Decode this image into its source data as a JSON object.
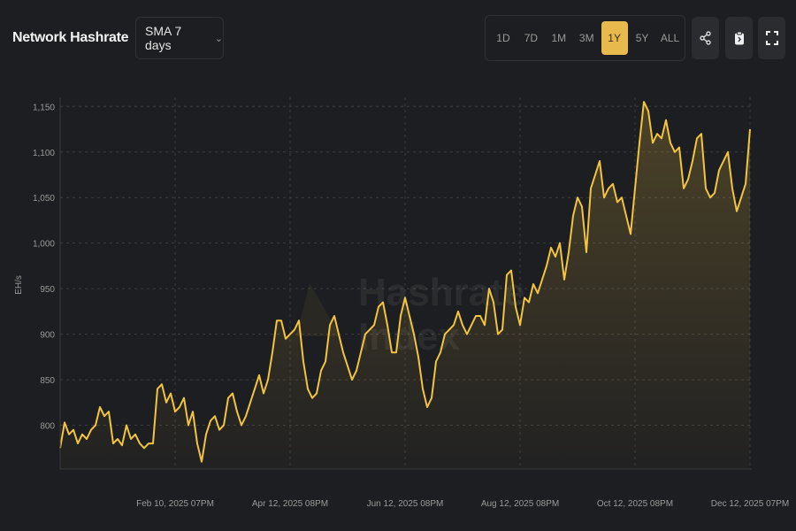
{
  "header": {
    "title": "Network Hashrate",
    "sma_select": "SMA 7 days",
    "ranges": [
      "1D",
      "7D",
      "1M",
      "3M",
      "1Y",
      "5Y",
      "ALL"
    ],
    "active_range": "1Y",
    "icons": [
      "share-icon",
      "clipboard-icon",
      "fullscreen-icon"
    ]
  },
  "watermark": "Hashrate Index",
  "colors": {
    "line": "#f2c440",
    "accent": "#e8ba4d",
    "background": "#1d1e21"
  },
  "chart_data": {
    "type": "area",
    "title": "Network Hashrate",
    "ylabel": "EH/s",
    "xlabel": "",
    "ylim": [
      750,
      1160
    ],
    "yticks": [
      800,
      850,
      900,
      950,
      1000,
      1050,
      1100,
      1150
    ],
    "ytick_labels": [
      "800",
      "850",
      "900",
      "950",
      "1,000",
      "1,050",
      "1,100",
      "1,150"
    ],
    "xtick_labels": [
      "Feb 10, 2025 07PM",
      "Apr 12, 2025 08PM",
      "Jun 12, 2025 08PM",
      "Aug 12, 2025 08PM",
      "Oct 12, 2025 08PM",
      "Dec 12, 2025 07PM"
    ],
    "xtick_fraction": [
      0.1667,
      0.3333,
      0.5,
      0.6667,
      0.8333,
      1.0
    ],
    "x_range": [
      "Dec 12, 2024",
      "Dec 12, 2025"
    ],
    "grid": true,
    "series": [
      {
        "name": "Network Hashrate (SMA 7 days)",
        "values": [
          775,
          803,
          790,
          795,
          780,
          790,
          785,
          795,
          800,
          820,
          810,
          815,
          780,
          785,
          778,
          800,
          785,
          790,
          780,
          775,
          780,
          780,
          840,
          845,
          825,
          835,
          815,
          820,
          830,
          800,
          815,
          780,
          760,
          790,
          805,
          810,
          795,
          800,
          830,
          835,
          815,
          800,
          810,
          825,
          840,
          855,
          835,
          850,
          880,
          915,
          915,
          895,
          900,
          905,
          915,
          870,
          840,
          830,
          835,
          860,
          870,
          910,
          920,
          900,
          880,
          865,
          850,
          860,
          880,
          900,
          905,
          910,
          930,
          935,
          910,
          880,
          880,
          920,
          940,
          920,
          900,
          875,
          840,
          820,
          830,
          870,
          880,
          900,
          905,
          910,
          925,
          910,
          900,
          910,
          920,
          920,
          910,
          950,
          935,
          900,
          905,
          965,
          970,
          930,
          910,
          940,
          935,
          955,
          945,
          960,
          975,
          995,
          985,
          1000,
          960,
          990,
          1030,
          1050,
          1040,
          990,
          1060,
          1075,
          1090,
          1050,
          1060,
          1065,
          1045,
          1050,
          1030,
          1010,
          1060,
          1110,
          1155,
          1145,
          1110,
          1120,
          1115,
          1135,
          1110,
          1100,
          1105,
          1060,
          1070,
          1090,
          1115,
          1120,
          1060,
          1050,
          1055,
          1080,
          1090,
          1100,
          1060,
          1035,
          1050,
          1065,
          1125
        ]
      }
    ]
  }
}
